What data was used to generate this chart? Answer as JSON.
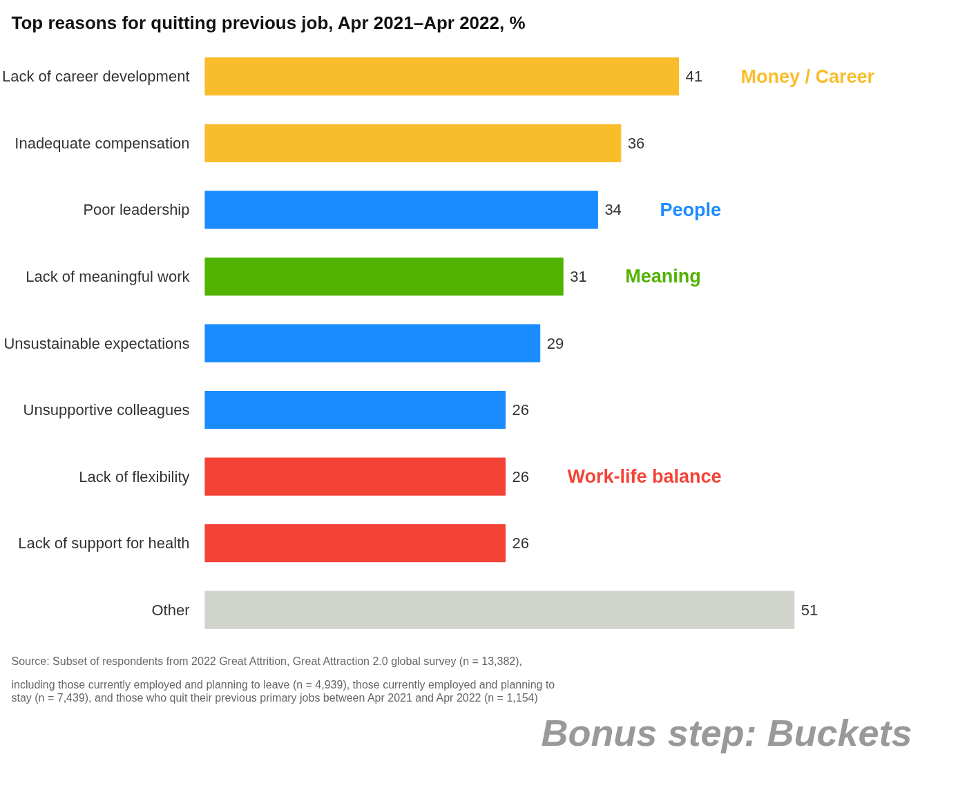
{
  "chart_data": {
    "type": "bar",
    "orientation": "horizontal",
    "title": "Top reasons for quitting previous job, Apr 2021–Apr 2022, %",
    "categories": [
      "Lack of career development",
      "Inadequate compensation",
      "Poor leadership",
      "Lack of meaningful work",
      "Unsustainable expectations",
      "Unsupportive colleagues",
      "Lack of flexibility",
      "Lack of support for health",
      "Other"
    ],
    "series": [
      {
        "name": "Money / Career",
        "color": "#f9bd2c",
        "values": [
          41,
          36,
          null,
          null,
          null,
          null,
          null,
          null,
          null
        ]
      },
      {
        "name": "People",
        "color": "#1a8cff",
        "values": [
          null,
          null,
          34,
          null,
          29,
          26,
          null,
          null,
          null
        ]
      },
      {
        "name": "Meaning",
        "color": "#52b200",
        "values": [
          null,
          null,
          null,
          31,
          null,
          null,
          null,
          null,
          null
        ]
      },
      {
        "name": "Work-life balance",
        "color": "#f44336",
        "values": [
          null,
          null,
          null,
          null,
          null,
          null,
          26,
          26,
          null
        ]
      },
      {
        "color": "#d0d4cc",
        "values": [
          null,
          null,
          null,
          null,
          null,
          null,
          null,
          null,
          51
        ]
      }
    ],
    "data_labels": true,
    "annotations": [
      "Source: Subset of respondents from 2022 Great Attrition, Great Attraction 2.0 global survey (n = 13,382), including those currently employed and planning to leave (n = 4,939), those currently employed and planning to stay (n = 7,439), and those who quit their previous primary jobs between Apr 2021 and Apr 2022 (n = 1,154)",
      "Bonus step: Buckets"
    ]
  }
}
